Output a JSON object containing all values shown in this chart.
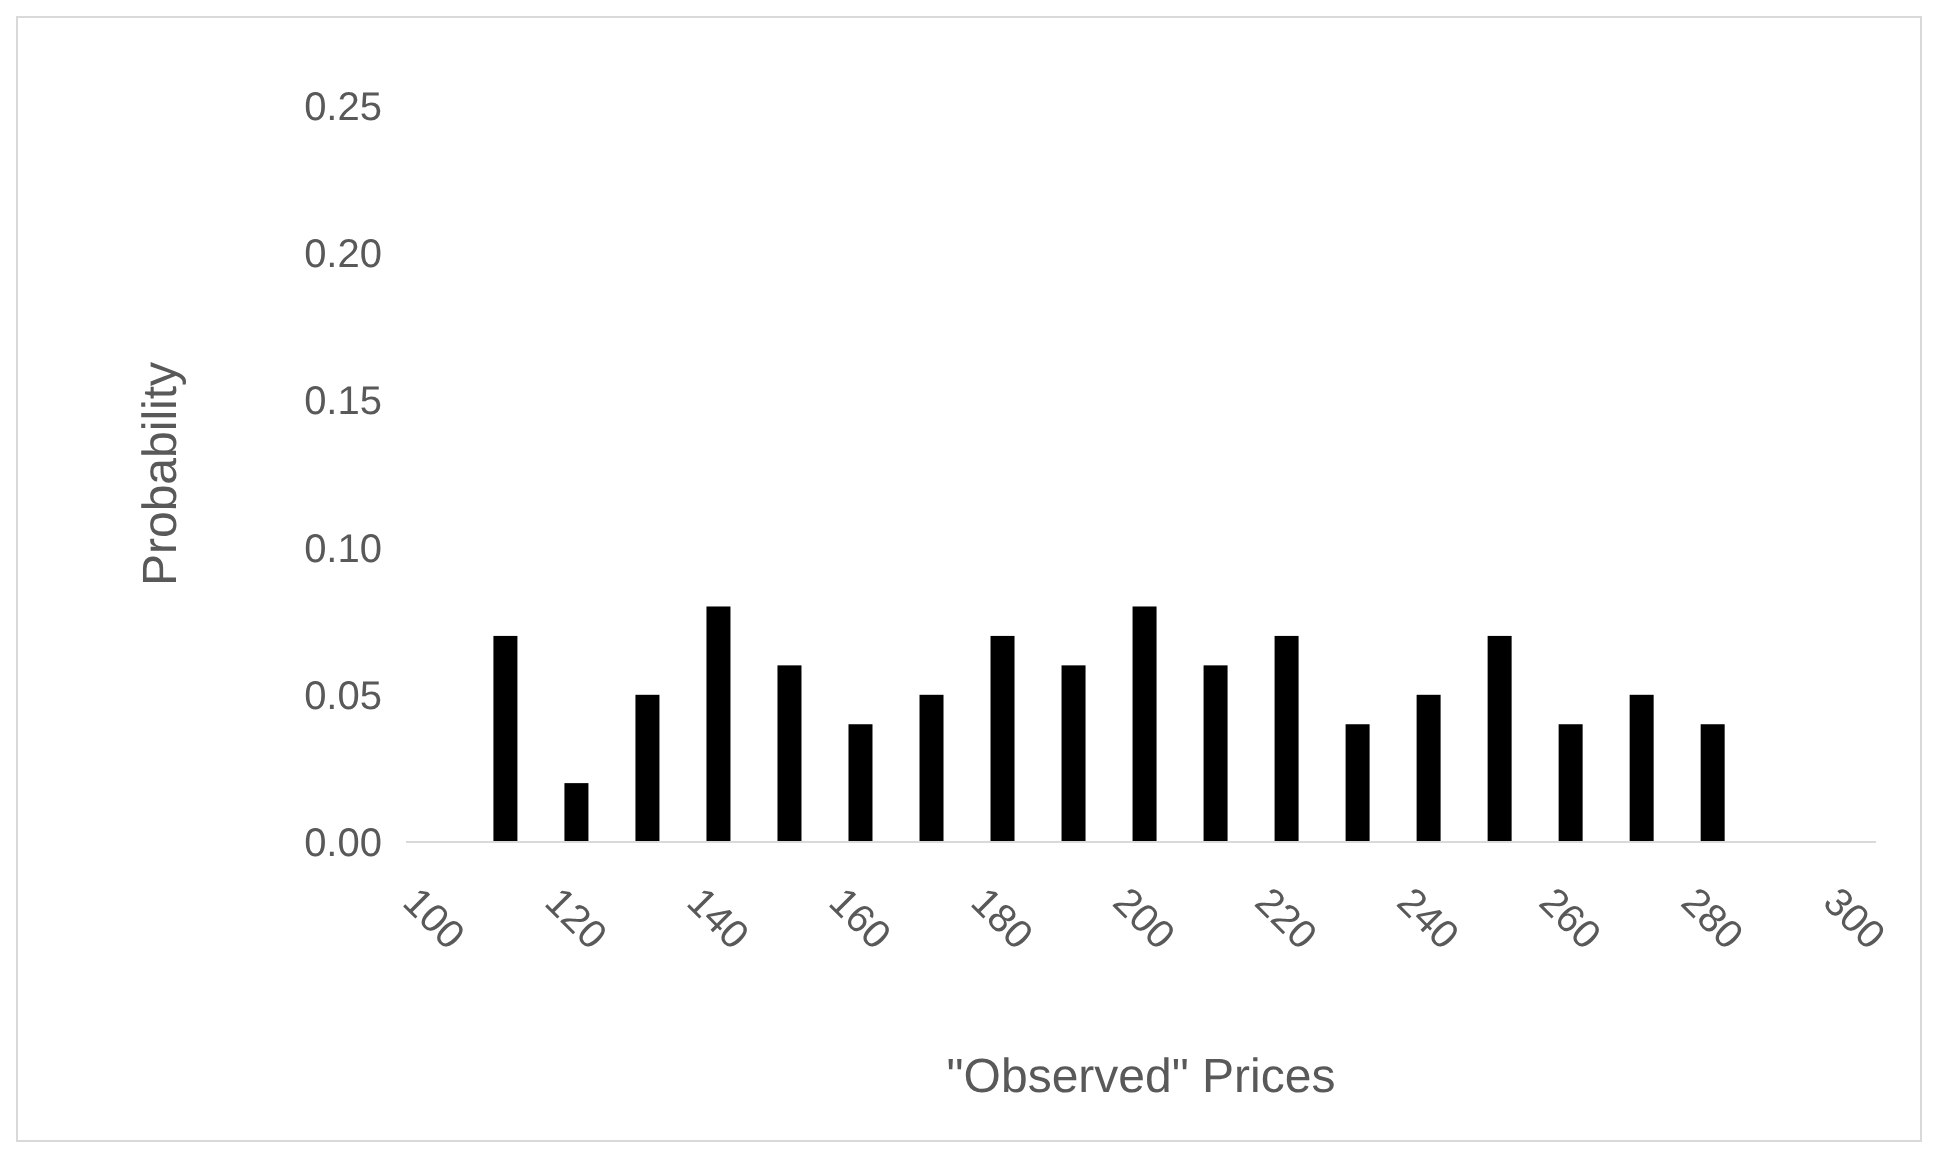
{
  "chart_data": {
    "type": "bar",
    "xlabel": "\"Observed\" Prices",
    "ylabel": "Probability",
    "x": [
      110,
      120,
      130,
      140,
      150,
      160,
      170,
      180,
      190,
      200,
      210,
      220,
      230,
      240,
      250,
      260,
      270,
      280
    ],
    "values": [
      0.07,
      0.02,
      0.05,
      0.08,
      0.06,
      0.04,
      0.05,
      0.07,
      0.06,
      0.08,
      0.06,
      0.07,
      0.04,
      0.05,
      0.07,
      0.04,
      0.05,
      0.04
    ],
    "color": "#000000",
    "xlim": [
      96,
      303
    ],
    "xticks": [
      100,
      120,
      140,
      160,
      180,
      200,
      220,
      240,
      260,
      280,
      300
    ],
    "ylim": [
      0,
      0.25
    ],
    "yticks": [
      {
        "value": 0,
        "label": "0.00"
      },
      {
        "value": 0.05,
        "label": "0.05"
      },
      {
        "value": 0.1,
        "label": "0.10"
      },
      {
        "value": 0.15,
        "label": "0.15"
      },
      {
        "value": 0.2,
        "label": "0.20"
      },
      {
        "value": 0.25,
        "label": "0.25"
      }
    ],
    "grid": false
  }
}
